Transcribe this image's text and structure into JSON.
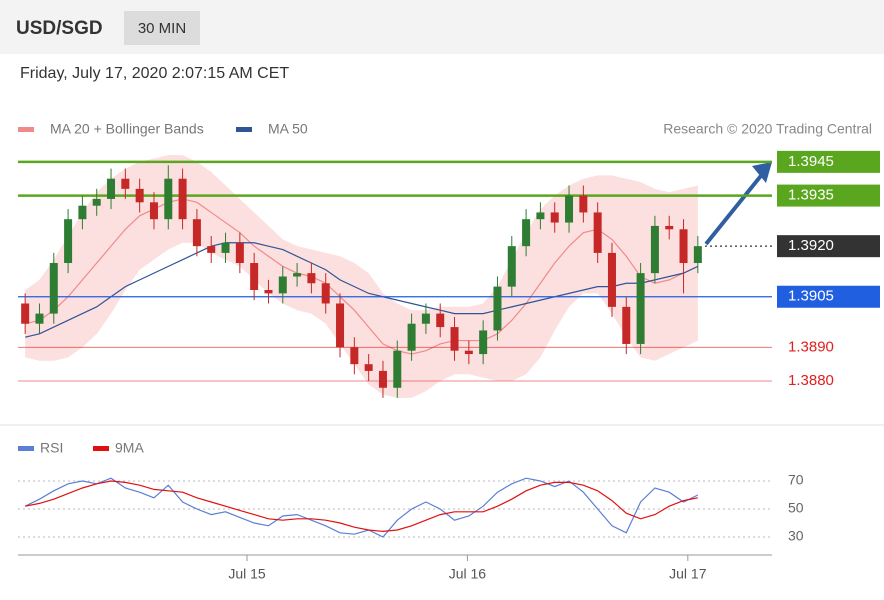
{
  "header": {
    "symbol": "USD/SGD",
    "interval": "30 MIN",
    "timestamp": "Friday, July 17, 2020 2:07:15 AM CET"
  },
  "chart_data": [
    {
      "type": "candlestick",
      "source": "Research © 2020 Trading Central",
      "up_color": "#2e7d32",
      "down_color": "#c62828",
      "xlim": [
        0,
        48
      ],
      "ylim": [
        1.3868,
        1.395
      ],
      "open": [
        1.3903,
        1.3897,
        1.39,
        1.3915,
        1.3928,
        1.3932,
        1.3934,
        1.394,
        1.3937,
        1.3933,
        1.3928,
        1.394,
        1.3928,
        1.392,
        1.3918,
        1.3921,
        1.3915,
        1.3907,
        1.3906,
        1.3911,
        1.3912,
        1.3909,
        1.3903,
        1.389,
        1.3885,
        1.3883,
        1.3878,
        1.3889,
        1.3897,
        1.39,
        1.3896,
        1.3889,
        1.3888,
        1.3895,
        1.3908,
        1.392,
        1.3928,
        1.393,
        1.3927,
        1.3935,
        1.393,
        1.3918,
        1.3902,
        1.3891,
        1.3912,
        1.3926,
        1.3925,
        1.3915
      ],
      "high": [
        1.3906,
        1.3903,
        1.3918,
        1.3931,
        1.3935,
        1.3937,
        1.3943,
        1.3943,
        1.394,
        1.3936,
        1.3944,
        1.3943,
        1.3931,
        1.3923,
        1.3924,
        1.3924,
        1.3918,
        1.391,
        1.3914,
        1.3915,
        1.3915,
        1.3912,
        1.3906,
        1.3893,
        1.3888,
        1.3886,
        1.3892,
        1.39,
        1.3903,
        1.3903,
        1.3899,
        1.3892,
        1.3898,
        1.3911,
        1.3923,
        1.3931,
        1.3933,
        1.3933,
        1.3938,
        1.3938,
        1.3933,
        1.3921,
        1.3905,
        1.3915,
        1.3929,
        1.3929,
        1.3928,
        1.3923
      ],
      "low": [
        1.3894,
        1.3894,
        1.3897,
        1.3912,
        1.3925,
        1.3929,
        1.3931,
        1.3934,
        1.393,
        1.3925,
        1.3925,
        1.3925,
        1.3917,
        1.3915,
        1.3915,
        1.3912,
        1.3904,
        1.3903,
        1.3903,
        1.3908,
        1.3906,
        1.39,
        1.3887,
        1.3882,
        1.388,
        1.3875,
        1.3875,
        1.3886,
        1.3894,
        1.3893,
        1.3886,
        1.3885,
        1.3885,
        1.3892,
        1.3905,
        1.3917,
        1.3925,
        1.3924,
        1.3924,
        1.3927,
        1.3915,
        1.3899,
        1.3888,
        1.3888,
        1.3909,
        1.3922,
        1.3906,
        1.3912
      ],
      "close": [
        1.3897,
        1.39,
        1.3915,
        1.3928,
        1.3932,
        1.3934,
        1.394,
        1.3937,
        1.3933,
        1.3928,
        1.394,
        1.3928,
        1.392,
        1.3918,
        1.3921,
        1.3915,
        1.3907,
        1.3906,
        1.3911,
        1.3912,
        1.3909,
        1.3903,
        1.389,
        1.3885,
        1.3883,
        1.3878,
        1.3889,
        1.3897,
        1.39,
        1.3896,
        1.3889,
        1.3888,
        1.3895,
        1.3908,
        1.392,
        1.3928,
        1.393,
        1.3927,
        1.3935,
        1.393,
        1.3918,
        1.3902,
        1.3891,
        1.3912,
        1.3926,
        1.3925,
        1.3915,
        1.392
      ],
      "indicators": [
        {
          "name": "MA 20 + Bollinger Bands",
          "color": "#f08a8a",
          "band_color": "#fcd9d9",
          "values": [
            1.3897,
            1.3898,
            1.3901,
            1.3905,
            1.391,
            1.3915,
            1.392,
            1.3925,
            1.3929,
            1.3931,
            1.3933,
            1.3934,
            1.3933,
            1.393,
            1.3927,
            1.3924,
            1.392,
            1.3917,
            1.3914,
            1.3912,
            1.3911,
            1.3909,
            1.3905,
            1.3901,
            1.3896,
            1.3891,
            1.3889,
            1.3888,
            1.3889,
            1.3891,
            1.3892,
            1.3892,
            1.3892,
            1.3894,
            1.3898,
            1.3903,
            1.3909,
            1.3915,
            1.392,
            1.3924,
            1.3925,
            1.3922,
            1.3917,
            1.3911,
            1.3909,
            1.391,
            1.3912,
            1.3914
          ],
          "upper": [
            1.3907,
            1.391,
            1.3916,
            1.3923,
            1.393,
            1.3936,
            1.394,
            1.3943,
            1.3945,
            1.3946,
            1.3947,
            1.3947,
            1.3945,
            1.3942,
            1.3938,
            1.3934,
            1.393,
            1.3926,
            1.3922,
            1.392,
            1.3919,
            1.3918,
            1.3917,
            1.3915,
            1.3912,
            1.3906,
            1.3903,
            1.3901,
            1.3901,
            1.3902,
            1.3902,
            1.3902,
            1.3903,
            1.3908,
            1.3916,
            1.3924,
            1.3931,
            1.3935,
            1.3938,
            1.394,
            1.3941,
            1.3941,
            1.394,
            1.3939,
            1.3937,
            1.3936,
            1.3937,
            1.3938
          ],
          "lower": [
            1.3887,
            1.3886,
            1.3886,
            1.3887,
            1.389,
            1.3894,
            1.39,
            1.3907,
            1.3913,
            1.3916,
            1.3919,
            1.3921,
            1.3921,
            1.3918,
            1.3916,
            1.3914,
            1.391,
            1.3906,
            1.3903,
            1.3901,
            1.39,
            1.3897,
            1.3891,
            1.3885,
            1.3879,
            1.3876,
            1.3875,
            1.3875,
            1.3877,
            1.388,
            1.3882,
            1.3882,
            1.3881,
            1.388,
            1.388,
            1.3882,
            1.3887,
            1.3895,
            1.3902,
            1.3906,
            1.3906,
            1.39,
            1.3893,
            1.3887,
            1.3886,
            1.3888,
            1.389,
            1.3892
          ]
        },
        {
          "name": "MA 50",
          "color": "#2f5597",
          "values": [
            1.3893,
            1.3894,
            1.3896,
            1.3898,
            1.39,
            1.3902,
            1.3905,
            1.3908,
            1.391,
            1.3912,
            1.3914,
            1.3916,
            1.3918,
            1.392,
            1.3921,
            1.3921,
            1.3921,
            1.392,
            1.3919,
            1.3917,
            1.3915,
            1.3913,
            1.391,
            1.3908,
            1.3906,
            1.3905,
            1.3904,
            1.3903,
            1.3902,
            1.3901,
            1.39,
            1.39,
            1.39,
            1.3901,
            1.3902,
            1.3903,
            1.3904,
            1.3905,
            1.3906,
            1.3907,
            1.3908,
            1.3908,
            1.3909,
            1.3909,
            1.391,
            1.3911,
            1.3912,
            1.3914
          ]
        }
      ],
      "levels": [
        {
          "value": 1.3945,
          "label": "1.3945",
          "color": "#5aa61e",
          "style": "box"
        },
        {
          "value": 1.3935,
          "label": "1.3935",
          "color": "#5aa61e",
          "style": "box"
        },
        {
          "value": 1.392,
          "label": "1.3920",
          "color": "#333333",
          "style": "dotted"
        },
        {
          "value": 1.3905,
          "label": "1.3905",
          "color": "#1f5fe0",
          "style": "box"
        },
        {
          "value": 1.389,
          "label": "1.3890",
          "color": "#e02020",
          "style": "text"
        },
        {
          "value": 1.388,
          "label": "1.3880",
          "color": "#e02020",
          "style": "text"
        }
      ]
    },
    {
      "type": "line",
      "xlim": [
        0,
        48
      ],
      "ylim": [
        20,
        80
      ],
      "yticks": [
        70,
        50,
        30
      ],
      "xticks": [
        {
          "value": 16,
          "label": "Jul 15"
        },
        {
          "value": 31.4,
          "label": "Jul 16"
        },
        {
          "value": 46.8,
          "label": "Jul 17"
        }
      ],
      "series": [
        {
          "name": "RSI",
          "color": "#5b7fd6",
          "values": [
            52,
            57,
            63,
            68,
            70,
            68,
            72,
            65,
            62,
            58,
            67,
            55,
            50,
            46,
            48,
            44,
            40,
            38,
            45,
            46,
            42,
            38,
            33,
            32,
            35,
            30,
            42,
            50,
            55,
            50,
            42,
            45,
            52,
            62,
            68,
            72,
            70,
            66,
            70,
            62,
            50,
            38,
            33,
            55,
            65,
            62,
            55,
            60
          ]
        },
        {
          "name": "9MA",
          "color": "#e01010",
          "values": [
            52,
            54,
            57,
            61,
            65,
            68,
            70,
            69,
            67,
            64,
            63,
            62,
            58,
            55,
            52,
            49,
            46,
            43,
            42,
            43,
            43,
            42,
            40,
            37,
            35,
            34,
            35,
            38,
            42,
            46,
            48,
            48,
            48,
            52,
            57,
            63,
            67,
            69,
            69,
            67,
            63,
            56,
            47,
            43,
            46,
            52,
            56,
            58
          ]
        }
      ]
    }
  ]
}
